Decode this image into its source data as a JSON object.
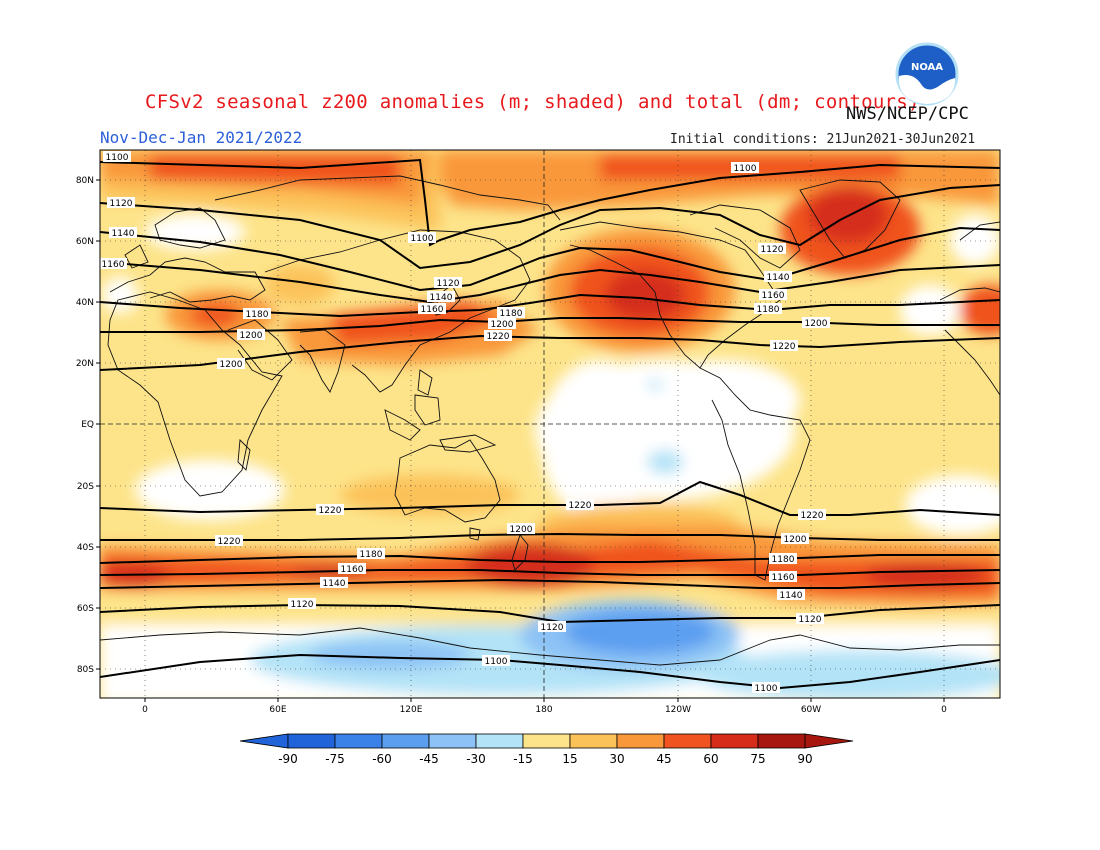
{
  "header": {
    "title": "CFSv2 seasonal z200 anomalies (m; shaded) and total (dm; contours)",
    "period": "Nov-Dec-Jan 2021/2022",
    "initial_conditions": "Initial conditions: 21Jun2021-30Jun2021",
    "agency": "NWS/NCEP/CPC",
    "logo_text": "NOAA"
  },
  "axes": {
    "lat_ticks": [
      "80N",
      "60N",
      "40N",
      "20N",
      "EQ",
      "20S",
      "40S",
      "60S",
      "80S"
    ],
    "lon_ticks": [
      "0",
      "60E",
      "120E",
      "180",
      "120W",
      "60W",
      "0"
    ]
  },
  "colorbar": {
    "labels": [
      "-90",
      "-75",
      "-60",
      "-45",
      "-30",
      "-15",
      "15",
      "30",
      "45",
      "60",
      "75",
      "90"
    ],
    "colors": [
      "#2163d9",
      "#3b82e8",
      "#5b9ef0",
      "#8cc2f5",
      "#b3e3f7",
      "#ffffff",
      "#fde48a",
      "#fcc25a",
      "#f9983b",
      "#f0531f",
      "#d62d1a",
      "#a8170f"
    ]
  },
  "contour_labels": [
    {
      "text": "1100"
    },
    {
      "text": "1100"
    },
    {
      "text": "1100"
    },
    {
      "text": "1120"
    },
    {
      "text": "1120"
    },
    {
      "text": "1120"
    },
    {
      "text": "1140"
    },
    {
      "text": "1140"
    },
    {
      "text": "1140"
    },
    {
      "text": "1160"
    },
    {
      "text": "1160"
    },
    {
      "text": "1160"
    },
    {
      "text": "1180"
    },
    {
      "text": "1180"
    },
    {
      "text": "1180"
    },
    {
      "text": "1200"
    },
    {
      "text": "1200"
    },
    {
      "text": "1200"
    },
    {
      "text": "1200"
    },
    {
      "text": "1220"
    },
    {
      "text": "1220"
    },
    {
      "text": "1220"
    },
    {
      "text": "1220"
    },
    {
      "text": "1220"
    },
    {
      "text": "1220"
    },
    {
      "text": "1200"
    },
    {
      "text": "1200"
    },
    {
      "text": "1180"
    },
    {
      "text": "1180"
    },
    {
      "text": "1160"
    },
    {
      "text": "1160"
    },
    {
      "text": "1140"
    },
    {
      "text": "1140"
    },
    {
      "text": "1120"
    },
    {
      "text": "1120"
    },
    {
      "text": "1120"
    },
    {
      "text": "1100"
    },
    {
      "text": "1100"
    }
  ]
}
